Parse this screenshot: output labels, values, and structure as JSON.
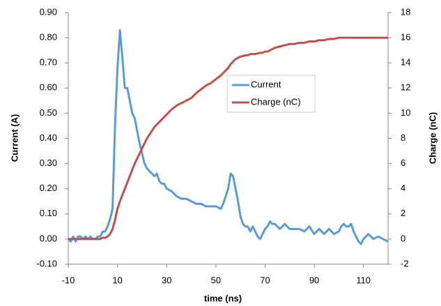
{
  "chart_data": {
    "type": "line",
    "x": [
      -10,
      -9,
      -8,
      -7,
      -6,
      -5,
      -4,
      -3,
      -2,
      -1,
      0,
      1,
      2,
      3,
      4,
      5,
      6,
      7,
      8,
      9,
      10,
      11,
      12,
      13,
      14,
      15,
      16,
      17,
      18,
      19,
      20,
      21,
      22,
      23,
      24,
      25,
      26,
      27,
      28,
      29,
      30,
      32,
      34,
      36,
      38,
      40,
      42,
      44,
      46,
      48,
      50,
      52,
      53,
      54,
      55,
      56,
      57,
      58,
      59,
      60,
      61,
      62,
      63,
      64,
      65,
      66,
      67,
      68,
      69,
      70,
      71,
      72,
      73,
      74,
      76,
      78,
      80,
      82,
      84,
      86,
      88,
      90,
      92,
      94,
      96,
      98,
      100,
      101,
      102,
      103,
      104,
      105,
      106,
      107,
      108,
      109,
      110,
      112,
      114,
      116,
      118,
      120
    ],
    "series": [
      {
        "name": "Current",
        "color": "#5b9bd5",
        "values": [
          0,
          -0.01,
          0.01,
          -0.01,
          0.01,
          0.01,
          0,
          0.01,
          0,
          0.01,
          0,
          0,
          0.01,
          0.01,
          0.03,
          0.03,
          0.05,
          0.08,
          0.12,
          0.45,
          0.68,
          0.83,
          0.72,
          0.6,
          0.6,
          0.55,
          0.5,
          0.48,
          0.43,
          0.38,
          0.34,
          0.3,
          0.28,
          0.27,
          0.26,
          0.25,
          0.26,
          0.23,
          0.22,
          0.22,
          0.2,
          0.19,
          0.17,
          0.16,
          0.16,
          0.15,
          0.14,
          0.14,
          0.13,
          0.13,
          0.13,
          0.12,
          0.14,
          0.17,
          0.2,
          0.26,
          0.25,
          0.2,
          0.15,
          0.09,
          0.06,
          0.05,
          0.05,
          0.03,
          0.05,
          0.03,
          0.01,
          0,
          0.02,
          0.04,
          0.05,
          0.07,
          0.06,
          0.06,
          0.04,
          0.06,
          0.04,
          0.04,
          0.04,
          0.03,
          0.05,
          0.02,
          0.04,
          0.02,
          0.04,
          0.02,
          0.03,
          0.05,
          0.06,
          0.05,
          0.05,
          0.06,
          0.03,
          0.01,
          -0.01,
          -0.02,
          0,
          0.02,
          0,
          0.01,
          0,
          -0.01
        ]
      },
      {
        "name": "Charge (nC)",
        "color": "#c0504d",
        "axis": "y2",
        "values": [
          0,
          0,
          0,
          0,
          0,
          0,
          0,
          0,
          0,
          0,
          0,
          0,
          0,
          0,
          0.1,
          0.1,
          0.2,
          0.4,
          0.8,
          1.5,
          2.4,
          3.0,
          3.5,
          4.0,
          4.5,
          5.0,
          5.5,
          6.0,
          6.4,
          6.8,
          7.2,
          7.6,
          8.0,
          8.3,
          8.6,
          8.9,
          9.1,
          9.3,
          9.5,
          9.7,
          9.9,
          10.3,
          10.6,
          10.8,
          11.0,
          11.2,
          11.6,
          11.9,
          12.2,
          12.4,
          12.7,
          13.0,
          13.2,
          13.4,
          13.6,
          13.9,
          14.1,
          14.3,
          14.4,
          14.5,
          14.55,
          14.6,
          14.6,
          14.7,
          14.7,
          14.7,
          14.75,
          14.8,
          14.8,
          14.9,
          14.9,
          15.0,
          15.1,
          15.2,
          15.3,
          15.4,
          15.5,
          15.5,
          15.6,
          15.6,
          15.7,
          15.7,
          15.8,
          15.8,
          15.9,
          15.9,
          16.0,
          16.0,
          16.0,
          16.0,
          16.0,
          16.0,
          16.0,
          16.0,
          16.0,
          16.0,
          16.0,
          16.0,
          16.0,
          16.0,
          16.0,
          16.0
        ]
      }
    ],
    "xlabel": "time (ns)",
    "ylabel": "Current (A)",
    "y2label": "Charge (nC)",
    "xlim": [
      -10,
      120
    ],
    "xticks": [
      -10,
      10,
      30,
      50,
      70,
      90,
      110
    ],
    "ylim": [
      -0.1,
      0.9
    ],
    "yticks": [
      {
        "value": -0.1,
        "label": "-0.10"
      },
      {
        "value": 0,
        "label": "0.00"
      },
      {
        "value": 0.1,
        "label": "0.10"
      },
      {
        "value": 0.2,
        "label": "0.20"
      },
      {
        "value": 0.3,
        "label": "0.30"
      },
      {
        "value": 0.4,
        "label": "0.40"
      },
      {
        "value": 0.5,
        "label": "0.50"
      },
      {
        "value": 0.6,
        "label": "0.60"
      },
      {
        "value": 0.7,
        "label": "0.70"
      },
      {
        "value": 0.8,
        "label": "0.80"
      },
      {
        "value": 0.9,
        "label": "0.90"
      }
    ],
    "y2lim": [
      -2,
      18
    ],
    "y2ticks": [
      -2,
      0,
      2,
      4,
      6,
      8,
      10,
      12,
      14,
      16,
      18
    ],
    "grid": false
  }
}
